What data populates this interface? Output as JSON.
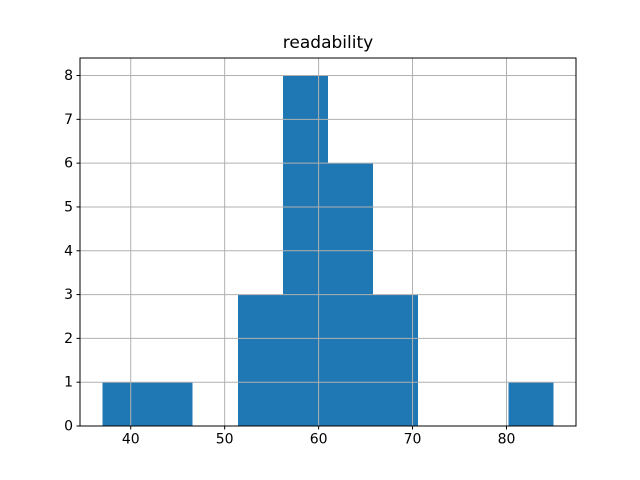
{
  "figure": {
    "background": "#ffffff"
  },
  "chart_data": {
    "type": "bar",
    "subtype": "histogram",
    "title": "readability",
    "xlabel": "",
    "ylabel": "",
    "bin_edges": [
      37.0,
      41.8,
      46.6,
      51.4,
      56.2,
      61.0,
      65.8,
      70.6,
      75.4,
      80.2,
      85.0
    ],
    "counts": [
      1,
      1,
      0,
      3,
      8,
      6,
      3,
      0,
      0,
      1
    ],
    "xticks": [
      40,
      50,
      60,
      70,
      80
    ],
    "yticks": [
      0,
      1,
      2,
      3,
      4,
      5,
      6,
      7,
      8
    ],
    "xlim": [
      34.6,
      87.4
    ],
    "ylim": [
      0,
      8.4
    ],
    "grid": true,
    "grid_above_bars": true,
    "legend": "none",
    "bar_color": "#1f77b4",
    "grid_color": "#b0b0b0",
    "spine_color": "#000000",
    "text_color": "#000000",
    "background_color": "#ffffff"
  }
}
